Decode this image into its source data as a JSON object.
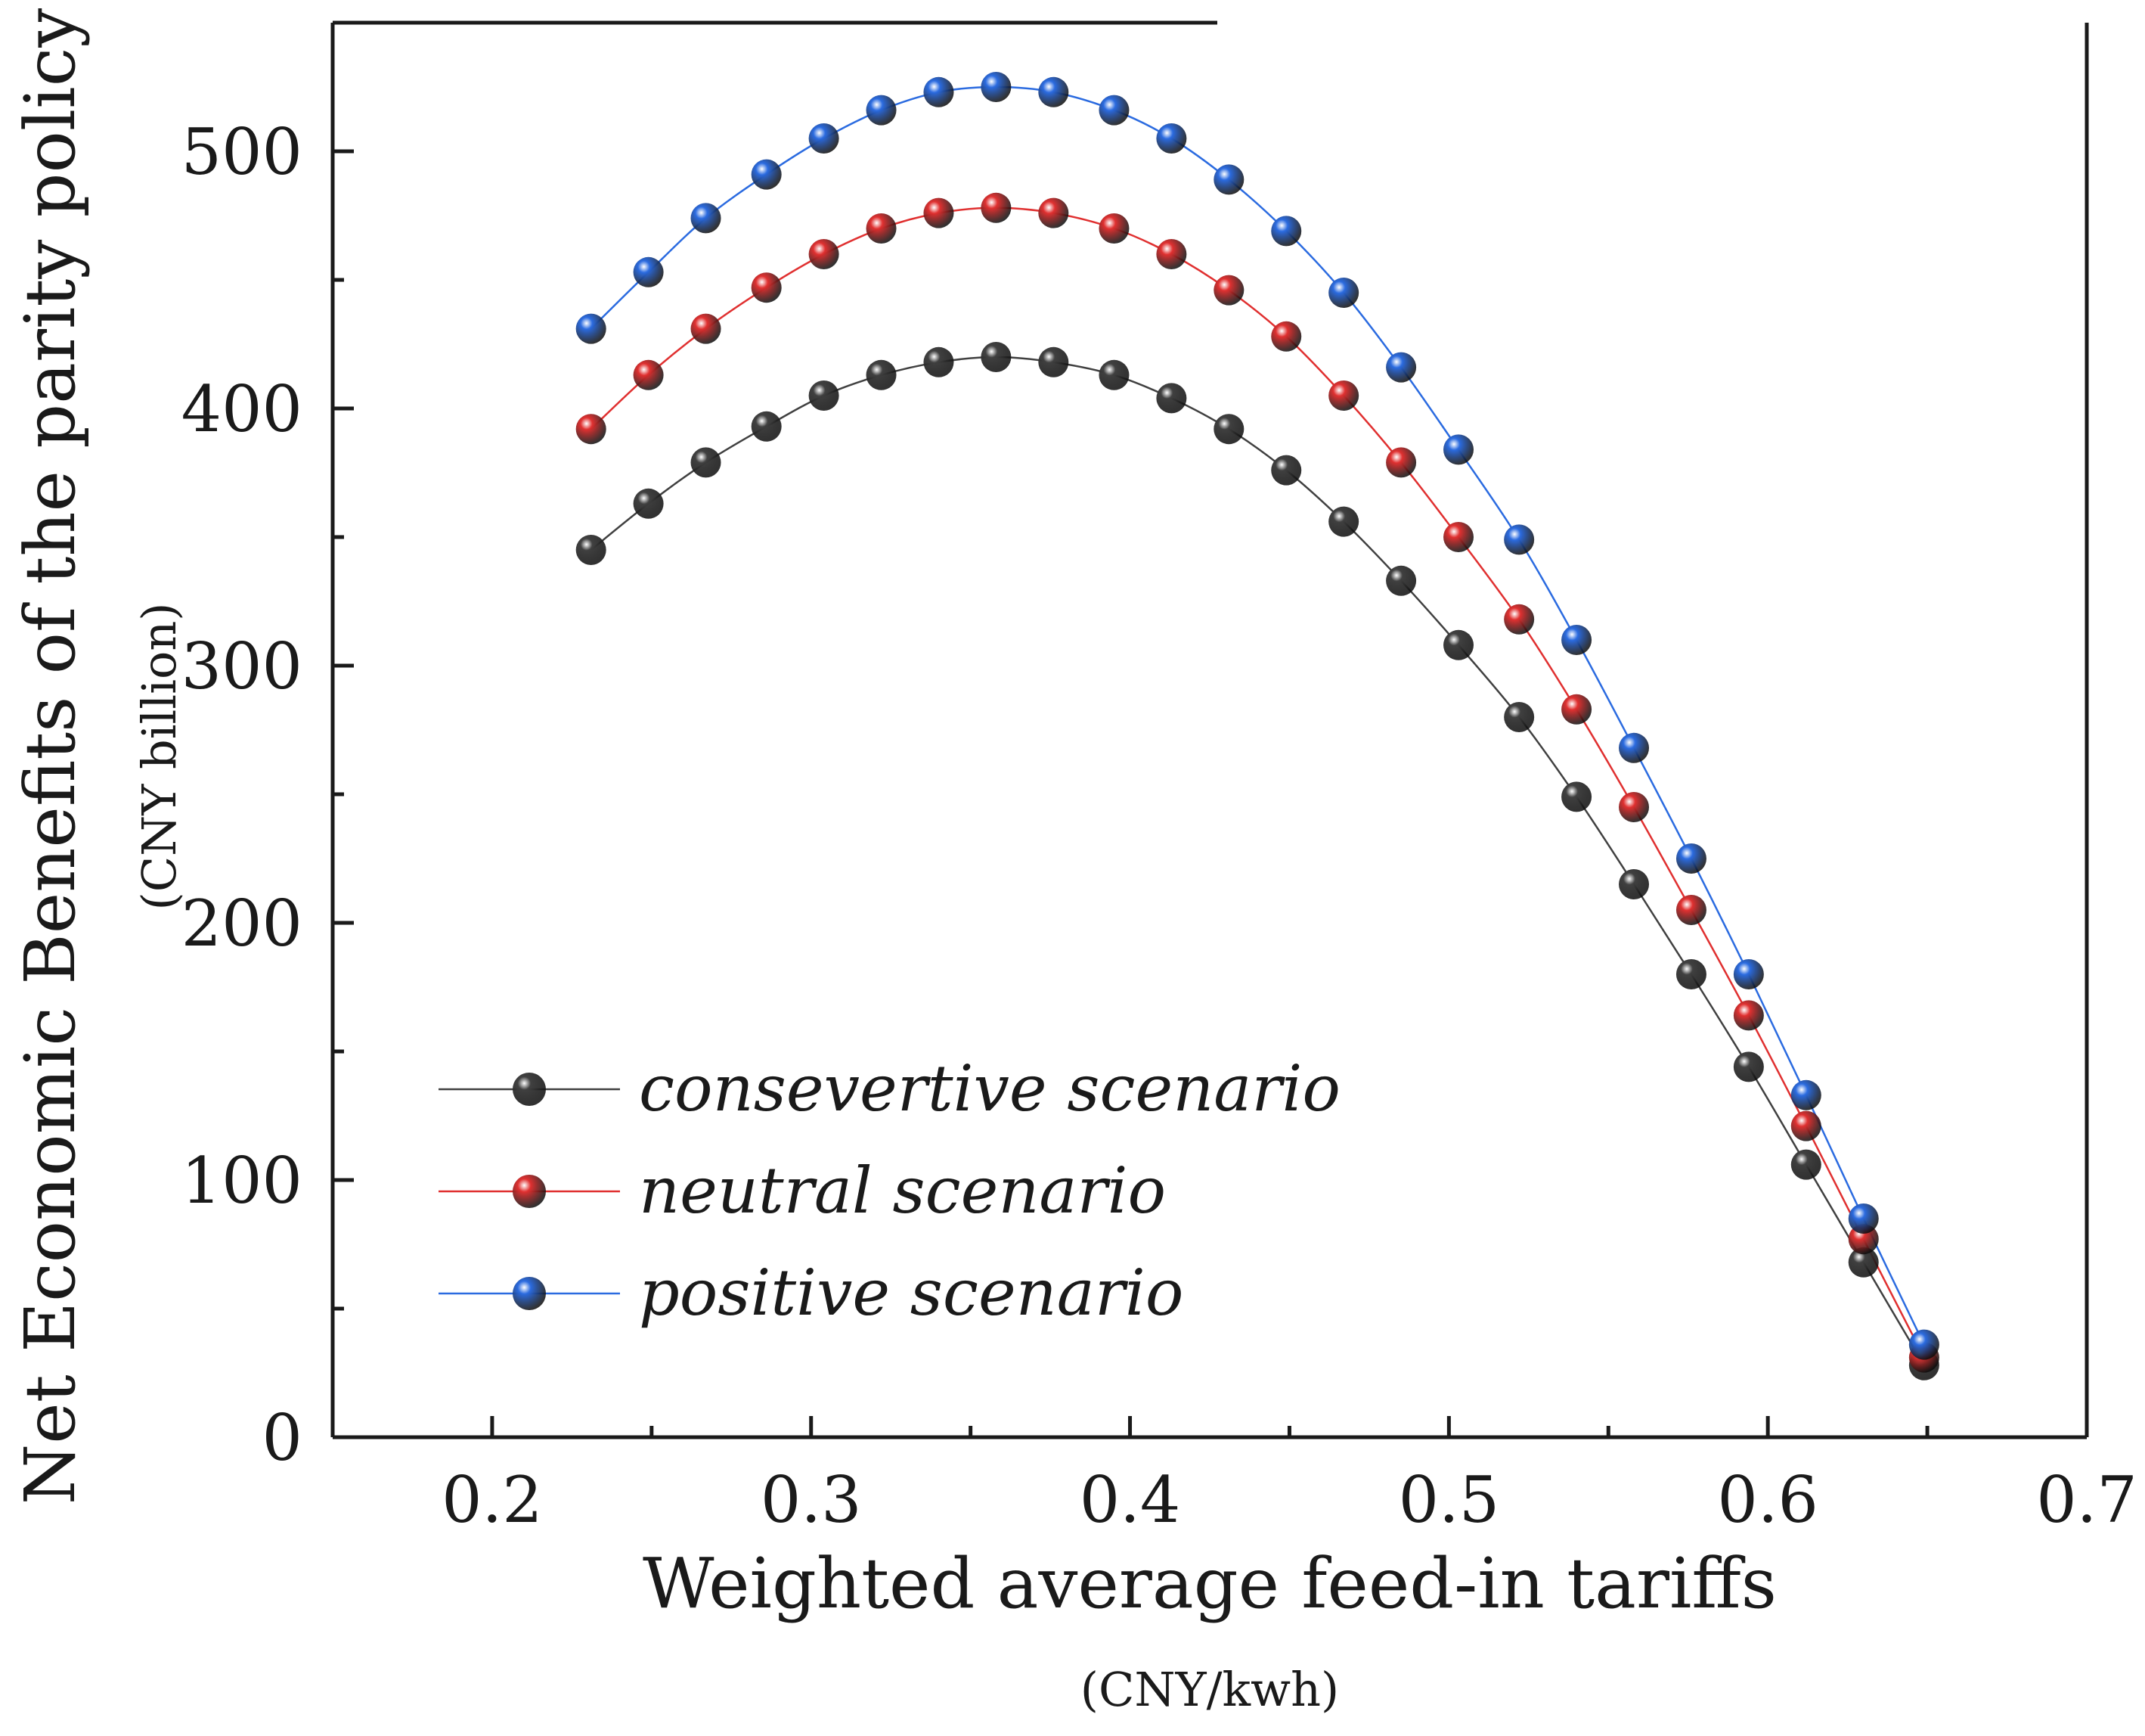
{
  "chart_data": {
    "type": "line",
    "xlabel": "Weighted average feed-in tariffs",
    "xunit": "(CNY/kwh)",
    "ylabel": "Net Economic Benefits of the parity policy",
    "yunit": "(CNY billion)",
    "xlim": [
      0.15,
      0.7
    ],
    "ylim": [
      0,
      550
    ],
    "xticks": [
      0.2,
      0.3,
      0.4,
      0.5,
      0.6,
      0.7
    ],
    "xtick_labels": [
      "0.2",
      "0.3",
      "0.4",
      "0.5",
      "0.6",
      "0.7"
    ],
    "yticks": [
      0,
      100,
      200,
      300,
      400,
      500
    ],
    "ytick_labels": [
      "0",
      "100",
      "200",
      "300",
      "400",
      "500"
    ],
    "legend_position": "lower-left",
    "grid": false,
    "x": [
      0.231,
      0.249,
      0.267,
      0.286,
      0.304,
      0.322,
      0.34,
      0.358,
      0.376,
      0.395,
      0.413,
      0.431,
      0.449,
      0.467,
      0.485,
      0.503,
      0.522,
      0.54,
      0.558,
      0.576,
      0.594,
      0.612,
      0.63,
      0.649
    ],
    "series": [
      {
        "name": "consevertive scenario",
        "color": "#404040",
        "values": [
          345,
          363,
          379,
          393,
          405,
          413,
          418,
          420,
          418,
          413,
          404,
          392,
          376,
          356,
          333,
          308,
          280,
          249,
          215,
          180,
          144,
          106,
          68,
          28
        ]
      },
      {
        "name": "neutral scenario",
        "color": "#e03030",
        "values": [
          392,
          413,
          431,
          447,
          460,
          470,
          476,
          478,
          476,
          470,
          460,
          446,
          428,
          405,
          379,
          350,
          318,
          283,
          245,
          205,
          164,
          121,
          77,
          31
        ]
      },
      {
        "name": "positive scenario",
        "color": "#2b6be0",
        "values": [
          431,
          453,
          474,
          491,
          505,
          516,
          523,
          525,
          523,
          516,
          505,
          489,
          469,
          445,
          416,
          384,
          349,
          310,
          268,
          225,
          180,
          133,
          85,
          36
        ]
      }
    ]
  }
}
